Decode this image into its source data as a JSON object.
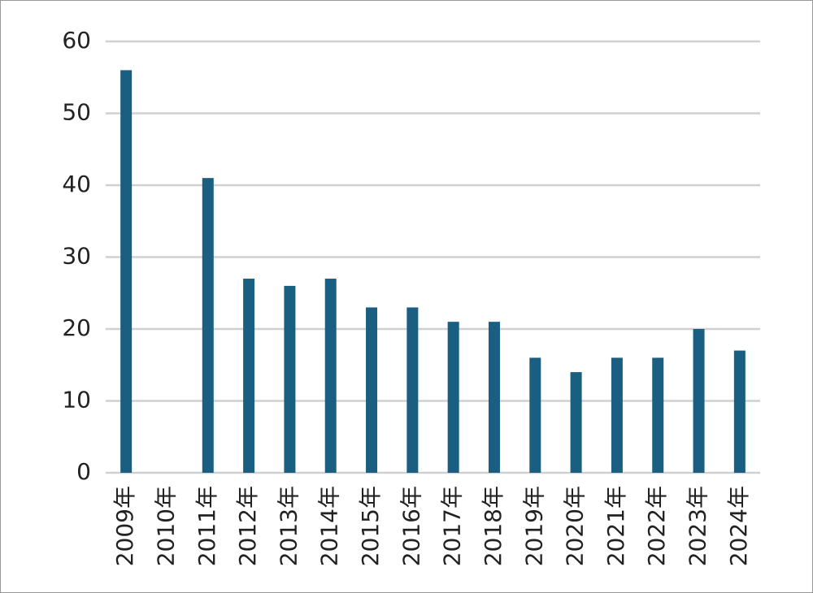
{
  "chart_data": {
    "type": "bar",
    "categories": [
      "2009年",
      "2010年",
      "2011年",
      "2012年",
      "2013年",
      "2014年",
      "2015年",
      "2016年",
      "2017年",
      "2018年",
      "2019年",
      "2020年",
      "2021年",
      "2022年",
      "2023年",
      "2024年"
    ],
    "values": [
      56,
      null,
      41,
      27,
      26,
      27,
      23,
      23,
      21,
      21,
      16,
      14,
      16,
      16,
      20,
      17
    ],
    "color": "#1a5f82",
    "ylim": [
      0,
      60
    ],
    "yticks": [
      0,
      10,
      20,
      30,
      40,
      50,
      60
    ],
    "grid": true
  }
}
